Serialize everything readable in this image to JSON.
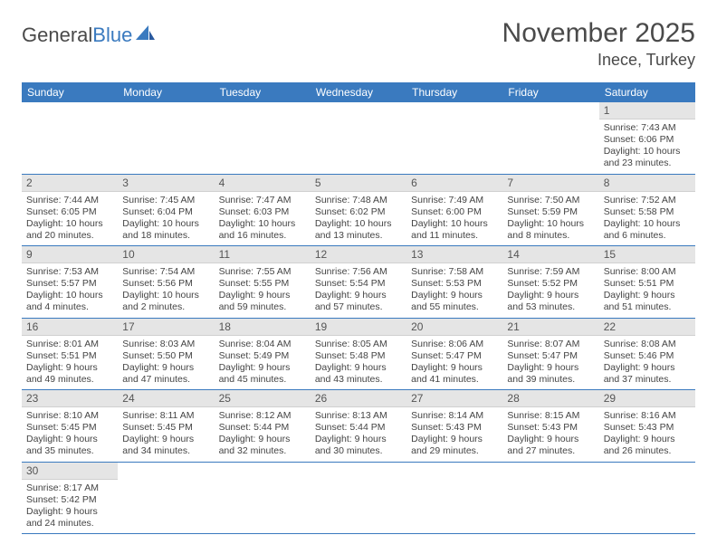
{
  "brand": {
    "part1": "General",
    "part2": "Blue"
  },
  "title": "November 2025",
  "location": "Inece, Turkey",
  "colors": {
    "header_bg": "#3a7abf",
    "header_text": "#ffffff",
    "daynum_bg": "#e5e5e5",
    "cell_border": "#3a7abf",
    "text": "#444444",
    "logo_gray": "#4a4a4a",
    "logo_blue": "#3a7abf"
  },
  "dow": [
    "Sunday",
    "Monday",
    "Tuesday",
    "Wednesday",
    "Thursday",
    "Friday",
    "Saturday"
  ],
  "weeks": [
    [
      null,
      null,
      null,
      null,
      null,
      null,
      {
        "n": "1",
        "sr": "7:43 AM",
        "ss": "6:06 PM",
        "dl": "10 hours and 23 minutes."
      }
    ],
    [
      {
        "n": "2",
        "sr": "7:44 AM",
        "ss": "6:05 PM",
        "dl": "10 hours and 20 minutes."
      },
      {
        "n": "3",
        "sr": "7:45 AM",
        "ss": "6:04 PM",
        "dl": "10 hours and 18 minutes."
      },
      {
        "n": "4",
        "sr": "7:47 AM",
        "ss": "6:03 PM",
        "dl": "10 hours and 16 minutes."
      },
      {
        "n": "5",
        "sr": "7:48 AM",
        "ss": "6:02 PM",
        "dl": "10 hours and 13 minutes."
      },
      {
        "n": "6",
        "sr": "7:49 AM",
        "ss": "6:00 PM",
        "dl": "10 hours and 11 minutes."
      },
      {
        "n": "7",
        "sr": "7:50 AM",
        "ss": "5:59 PM",
        "dl": "10 hours and 8 minutes."
      },
      {
        "n": "8",
        "sr": "7:52 AM",
        "ss": "5:58 PM",
        "dl": "10 hours and 6 minutes."
      }
    ],
    [
      {
        "n": "9",
        "sr": "7:53 AM",
        "ss": "5:57 PM",
        "dl": "10 hours and 4 minutes."
      },
      {
        "n": "10",
        "sr": "7:54 AM",
        "ss": "5:56 PM",
        "dl": "10 hours and 2 minutes."
      },
      {
        "n": "11",
        "sr": "7:55 AM",
        "ss": "5:55 PM",
        "dl": "9 hours and 59 minutes."
      },
      {
        "n": "12",
        "sr": "7:56 AM",
        "ss": "5:54 PM",
        "dl": "9 hours and 57 minutes."
      },
      {
        "n": "13",
        "sr": "7:58 AM",
        "ss": "5:53 PM",
        "dl": "9 hours and 55 minutes."
      },
      {
        "n": "14",
        "sr": "7:59 AM",
        "ss": "5:52 PM",
        "dl": "9 hours and 53 minutes."
      },
      {
        "n": "15",
        "sr": "8:00 AM",
        "ss": "5:51 PM",
        "dl": "9 hours and 51 minutes."
      }
    ],
    [
      {
        "n": "16",
        "sr": "8:01 AM",
        "ss": "5:51 PM",
        "dl": "9 hours and 49 minutes."
      },
      {
        "n": "17",
        "sr": "8:03 AM",
        "ss": "5:50 PM",
        "dl": "9 hours and 47 minutes."
      },
      {
        "n": "18",
        "sr": "8:04 AM",
        "ss": "5:49 PM",
        "dl": "9 hours and 45 minutes."
      },
      {
        "n": "19",
        "sr": "8:05 AM",
        "ss": "5:48 PM",
        "dl": "9 hours and 43 minutes."
      },
      {
        "n": "20",
        "sr": "8:06 AM",
        "ss": "5:47 PM",
        "dl": "9 hours and 41 minutes."
      },
      {
        "n": "21",
        "sr": "8:07 AM",
        "ss": "5:47 PM",
        "dl": "9 hours and 39 minutes."
      },
      {
        "n": "22",
        "sr": "8:08 AM",
        "ss": "5:46 PM",
        "dl": "9 hours and 37 minutes."
      }
    ],
    [
      {
        "n": "23",
        "sr": "8:10 AM",
        "ss": "5:45 PM",
        "dl": "9 hours and 35 minutes."
      },
      {
        "n": "24",
        "sr": "8:11 AM",
        "ss": "5:45 PM",
        "dl": "9 hours and 34 minutes."
      },
      {
        "n": "25",
        "sr": "8:12 AM",
        "ss": "5:44 PM",
        "dl": "9 hours and 32 minutes."
      },
      {
        "n": "26",
        "sr": "8:13 AM",
        "ss": "5:44 PM",
        "dl": "9 hours and 30 minutes."
      },
      {
        "n": "27",
        "sr": "8:14 AM",
        "ss": "5:43 PM",
        "dl": "9 hours and 29 minutes."
      },
      {
        "n": "28",
        "sr": "8:15 AM",
        "ss": "5:43 PM",
        "dl": "9 hours and 27 minutes."
      },
      {
        "n": "29",
        "sr": "8:16 AM",
        "ss": "5:43 PM",
        "dl": "9 hours and 26 minutes."
      }
    ],
    [
      {
        "n": "30",
        "sr": "8:17 AM",
        "ss": "5:42 PM",
        "dl": "9 hours and 24 minutes."
      },
      null,
      null,
      null,
      null,
      null,
      null
    ]
  ],
  "labels": {
    "sunrise": "Sunrise: ",
    "sunset": "Sunset: ",
    "daylight": "Daylight: "
  }
}
